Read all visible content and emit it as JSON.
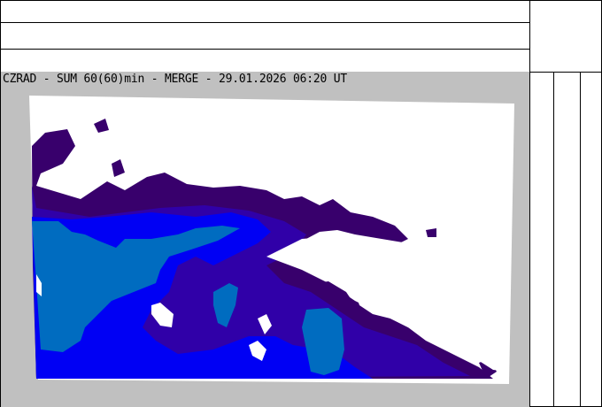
{
  "map": {
    "title": "CZRAD - SUM 60(60)min - MERGE - 29.01.2026 06:20 UT",
    "colors": {
      "background": "#c0c0c0",
      "domain": "#ffffff",
      "level1": "#38006c",
      "level2": "#3000a8",
      "level3": "#0000f4",
      "level4": "#006cc0"
    }
  }
}
